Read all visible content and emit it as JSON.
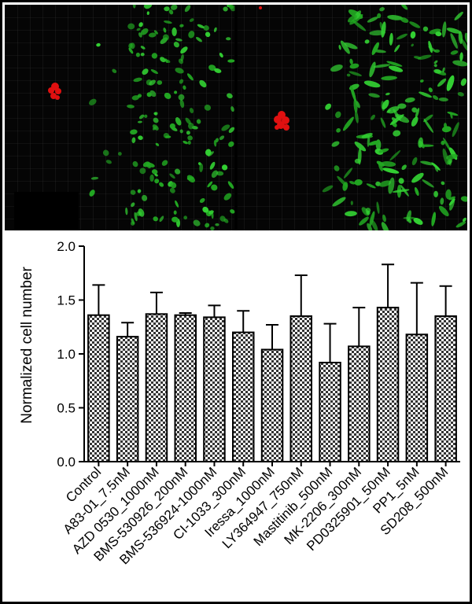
{
  "figure": {
    "panel_top": "fluorescence-micrographs",
    "micro_colors": {
      "background": "#050505",
      "cells": "#2ecc2e",
      "marker": "#e01010",
      "grid": "#ffffff"
    }
  },
  "chart_data": {
    "type": "bar",
    "title": "",
    "xlabel": "",
    "ylabel": "Normalized cell number",
    "ylim": [
      0,
      2.0
    ],
    "yticks": [
      "0.0",
      "0.5",
      "1.0",
      "1.5",
      "2.0"
    ],
    "categories": [
      "Control",
      "A83-01_7.5nM",
      "AZD 0530_1000nM",
      "BMS-530926_200nM",
      "BMS-536924-1000nM",
      "CI-1033_300nM",
      "Iressa_1000nM",
      "LY364947_750nM",
      "Mastitinib_500nM",
      "MK-2206_300nM",
      "PD0325901_50nM",
      "PP1_5nM",
      "SD208_500nM"
    ],
    "values": [
      1.36,
      1.16,
      1.37,
      1.36,
      1.34,
      1.2,
      1.04,
      1.35,
      0.92,
      1.07,
      1.43,
      1.18,
      1.35
    ],
    "errors": [
      0.28,
      0.13,
      0.2,
      0.02,
      0.11,
      0.2,
      0.23,
      0.38,
      0.36,
      0.36,
      0.4,
      0.48,
      0.28
    ],
    "bar_fill": "checkered",
    "grid": false,
    "legend": "none"
  }
}
